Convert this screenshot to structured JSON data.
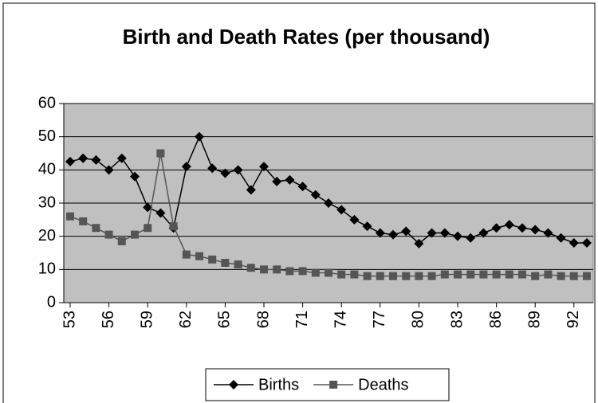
{
  "chart_data": {
    "type": "line",
    "title": "Birth and Death Rates (per thousand)",
    "categories": [
      "53",
      null,
      null,
      "56",
      null,
      null,
      "59",
      null,
      null,
      "62",
      null,
      null,
      "65",
      null,
      null,
      "68",
      null,
      null,
      "71",
      null,
      null,
      "74",
      null,
      null,
      "77",
      null,
      null,
      "80",
      null,
      null,
      "83",
      null,
      null,
      "86",
      null,
      null,
      "89",
      null,
      null,
      "92",
      null
    ],
    "series": [
      {
        "name": "Births",
        "color": "#000000",
        "marker": "diamond",
        "values": [
          42.5,
          43.5,
          43,
          40,
          43.5,
          38,
          28.7,
          27,
          22.5,
          41,
          50,
          40.5,
          39,
          40,
          34,
          41,
          36.5,
          37,
          35,
          32.5,
          30,
          28,
          25,
          23,
          21,
          20.5,
          21.5,
          17.8,
          21,
          21,
          20,
          19.5,
          21,
          22.5,
          23.5,
          22.5,
          22,
          21,
          19.5,
          18,
          18
        ]
      },
      {
        "name": "Deaths",
        "color": "#555555",
        "marker": "square",
        "values": [
          26,
          24.5,
          22.5,
          20.5,
          18.5,
          20.5,
          22.5,
          45,
          23,
          14.5,
          14,
          13,
          12,
          11.5,
          10.5,
          10,
          10,
          9.5,
          9.5,
          9,
          9,
          8.5,
          8.5,
          8,
          8,
          8,
          8,
          8,
          8,
          8.5,
          8.5,
          8.5,
          8.5,
          8.5,
          8.5,
          8.5,
          8,
          8.5,
          8,
          8,
          8
        ]
      }
    ],
    "ylim": [
      0,
      60
    ],
    "yticks": [
      0,
      10,
      20,
      30,
      40,
      50,
      60
    ],
    "grid": true,
    "plot_background": "#c0c0c0",
    "legend": "bottom"
  }
}
